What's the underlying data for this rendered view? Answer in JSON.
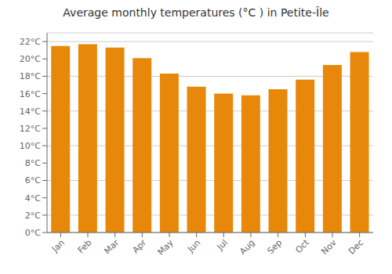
{
  "chart_data": {
    "type": "bar",
    "title": "Average monthly temperatures (°C ) in Petite-Île",
    "categories": [
      "Jan",
      "Feb",
      "Mar",
      "Apr",
      "May",
      "Jun",
      "Jul",
      "Aug",
      "Sep",
      "Oct",
      "Nov",
      "Dec"
    ],
    "values": [
      21.5,
      21.7,
      21.3,
      20.1,
      18.3,
      16.8,
      16.0,
      15.8,
      16.5,
      17.6,
      19.3,
      20.8
    ],
    "color": "#E8880A",
    "ylim": [
      0,
      23
    ],
    "yticks": [
      {
        "value": 0,
        "label": "0°C"
      },
      {
        "value": 2,
        "label": "2°C"
      },
      {
        "value": 4,
        "label": "4°C"
      },
      {
        "value": 6,
        "label": "6°C"
      },
      {
        "value": 8,
        "label": "8°C"
      },
      {
        "value": 10,
        "label": "10°C"
      },
      {
        "value": 12,
        "label": "12°C"
      },
      {
        "value": 14,
        "label": "14°C"
      },
      {
        "value": 16,
        "label": "16°C"
      },
      {
        "value": 18,
        "label": "18°C"
      },
      {
        "value": 20,
        "label": "20°C"
      },
      {
        "value": 22,
        "label": "22°C"
      }
    ],
    "grid": true
  }
}
